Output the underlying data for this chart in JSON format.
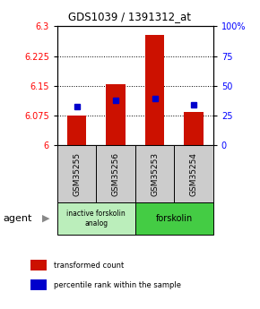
{
  "title": "GDS1039 / 1391312_at",
  "samples": [
    "GSM35255",
    "GSM35256",
    "GSM35253",
    "GSM35254"
  ],
  "bar_values": [
    6.075,
    6.155,
    6.278,
    6.085
  ],
  "bar_base": 6.0,
  "percentile_values": [
    6.098,
    6.113,
    6.118,
    6.103
  ],
  "ylim": [
    6.0,
    6.3
  ],
  "yticks_left": [
    6,
    6.075,
    6.15,
    6.225,
    6.3
  ],
  "yticks_right": [
    0,
    25,
    50,
    75,
    100
  ],
  "bar_color": "#cc1100",
  "percentile_color": "#0000cc",
  "groups": [
    {
      "label": "inactive forskolin\nanalog",
      "span": [
        0,
        2
      ],
      "color": "#bbeebb"
    },
    {
      "label": "forskolin",
      "span": [
        2,
        4
      ],
      "color": "#44cc44"
    }
  ],
  "agent_label": "agent",
  "legend_red": "transformed count",
  "legend_blue": "percentile rank within the sample",
  "background_color": "#ffffff",
  "box_bg": "#cccccc"
}
